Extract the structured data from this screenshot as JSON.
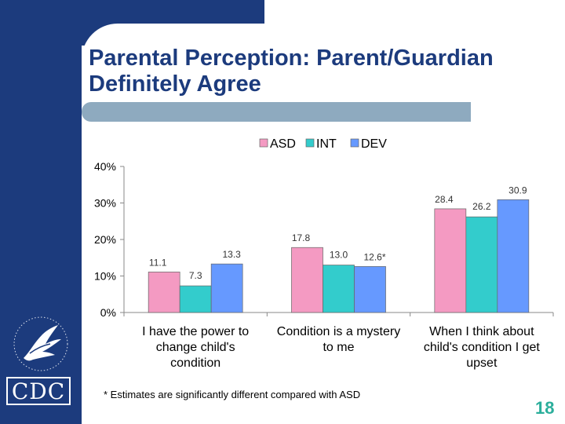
{
  "slide": {
    "title": "Parental Perception: Parent/Guardian Definitely Agree",
    "footnote": "* Estimates are significantly different compared with ASD",
    "page_number": "18",
    "logo_text": "CDC",
    "colors": {
      "brand_blue": "#1c3b7d",
      "title_bar": "#8eaabf",
      "page_number": "#2bae9b"
    }
  },
  "chart_data": {
    "type": "bar",
    "categories": [
      [
        "I have the power to",
        "change child's",
        "condition"
      ],
      [
        "Condition is a mystery",
        "to me"
      ],
      [
        "When I think about",
        "child's condition I get",
        "upset"
      ]
    ],
    "series": [
      {
        "name": "ASD",
        "color": "#f49ac2",
        "values": [
          11.1,
          17.8,
          28.4
        ],
        "labels": [
          "11.1",
          "17.8",
          "28.4"
        ]
      },
      {
        "name": "INT",
        "color": "#33cccc",
        "values": [
          7.3,
          13.0,
          26.2
        ],
        "labels": [
          "7.3",
          "13.0",
          "26.2"
        ]
      },
      {
        "name": "DEV",
        "color": "#6699ff",
        "values": [
          13.3,
          12.6,
          30.9
        ],
        "labels": [
          "13.3",
          "12.6*",
          "30.9"
        ]
      }
    ],
    "ylim": [
      0,
      40
    ],
    "yticks": [
      0,
      10,
      20,
      30,
      40
    ],
    "ytick_labels": [
      "0%",
      "10%",
      "20%",
      "30%",
      "40%"
    ],
    "legend_position": "top",
    "grid": false
  }
}
